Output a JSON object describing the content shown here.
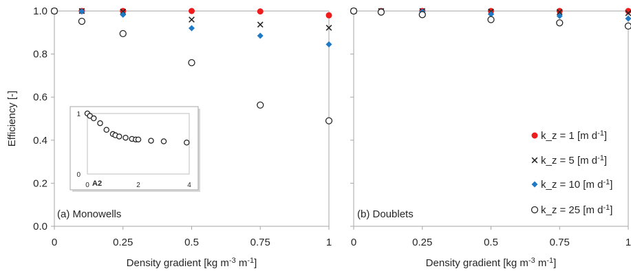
{
  "chart_data": [
    {
      "type": "scatter",
      "panel_label": "(a) Monowells",
      "ylabel": "Efficiency [-]",
      "xlabel": "Density gradient [kg m-3 m-1]",
      "xlim": [
        0,
        1
      ],
      "ylim": [
        0,
        1
      ],
      "x_ticks": [
        "0",
        "0.25",
        "0.5",
        "0.75",
        "1"
      ],
      "y_ticks": [
        "0.0",
        "0.2",
        "0.4",
        "0.6",
        "0.8",
        "1.0"
      ],
      "x": [
        0,
        0.1,
        0.25,
        0.5,
        0.75,
        1
      ],
      "series": [
        {
          "marker": "filled-circle",
          "color": "#ee1c1c",
          "values": [
            1.0,
            1.0,
            1.0,
            1.0,
            0.998,
            0.98
          ]
        },
        {
          "marker": "cross",
          "color": "#262626",
          "values": [
            1.0,
            1.0,
            0.997,
            0.96,
            0.937,
            0.922
          ]
        },
        {
          "marker": "diamond",
          "color": "#1f7ac6",
          "values": [
            1.0,
            0.998,
            0.983,
            0.92,
            0.885,
            0.845
          ]
        },
        {
          "marker": "open-circle",
          "color": "#262626",
          "values": [
            1.0,
            0.952,
            0.895,
            0.76,
            0.563,
            0.49
          ]
        }
      ],
      "inset": {
        "tag": "A2",
        "x_ticks": [
          "0",
          "2",
          "4"
        ],
        "y_ticks": [
          "0",
          "1"
        ],
        "xlim": [
          0,
          4
        ],
        "ylim": [
          0,
          1
        ],
        "x": [
          0,
          0.1,
          0.25,
          0.5,
          0.75,
          1,
          1.1,
          1.25,
          1.5,
          1.75,
          1.9,
          2.0,
          2.5,
          3.0,
          3.9
        ],
        "values": [
          1.0,
          0.96,
          0.92,
          0.84,
          0.73,
          0.66,
          0.64,
          0.62,
          0.6,
          0.58,
          0.57,
          0.57,
          0.55,
          0.54,
          0.52
        ]
      }
    },
    {
      "type": "scatter",
      "panel_label": "(b) Doublets",
      "xlabel": "Density gradient [kg m-3 m-1]",
      "xlim": [
        0,
        1
      ],
      "ylim": [
        0,
        1
      ],
      "x_ticks": [
        "0",
        "0.25",
        "0.5",
        "0.75",
        "1"
      ],
      "x": [
        0,
        0.1,
        0.25,
        0.5,
        0.75,
        1
      ],
      "series": [
        {
          "name": "k_z = 1 [m d-1]",
          "marker": "filled-circle",
          "color": "#ee1c1c",
          "values": [
            1.0,
            1.0,
            1.0,
            1.0,
            1.0,
            1.0
          ]
        },
        {
          "name": "k_z = 5 [m d-1]",
          "marker": "cross",
          "color": "#262626",
          "values": [
            1.0,
            1.0,
            1.0,
            0.997,
            0.995,
            0.99
          ]
        },
        {
          "name": "k_z = 10 [m d-1]",
          "marker": "diamond",
          "color": "#1f7ac6",
          "values": [
            1.0,
            1.0,
            0.997,
            0.985,
            0.977,
            0.965
          ]
        },
        {
          "name": "k_z = 25 [m d-1]",
          "marker": "open-circle",
          "color": "#262626",
          "values": [
            1.0,
            0.995,
            0.983,
            0.96,
            0.945,
            0.93
          ]
        }
      ],
      "legend": {
        "position": "right"
      }
    }
  ]
}
